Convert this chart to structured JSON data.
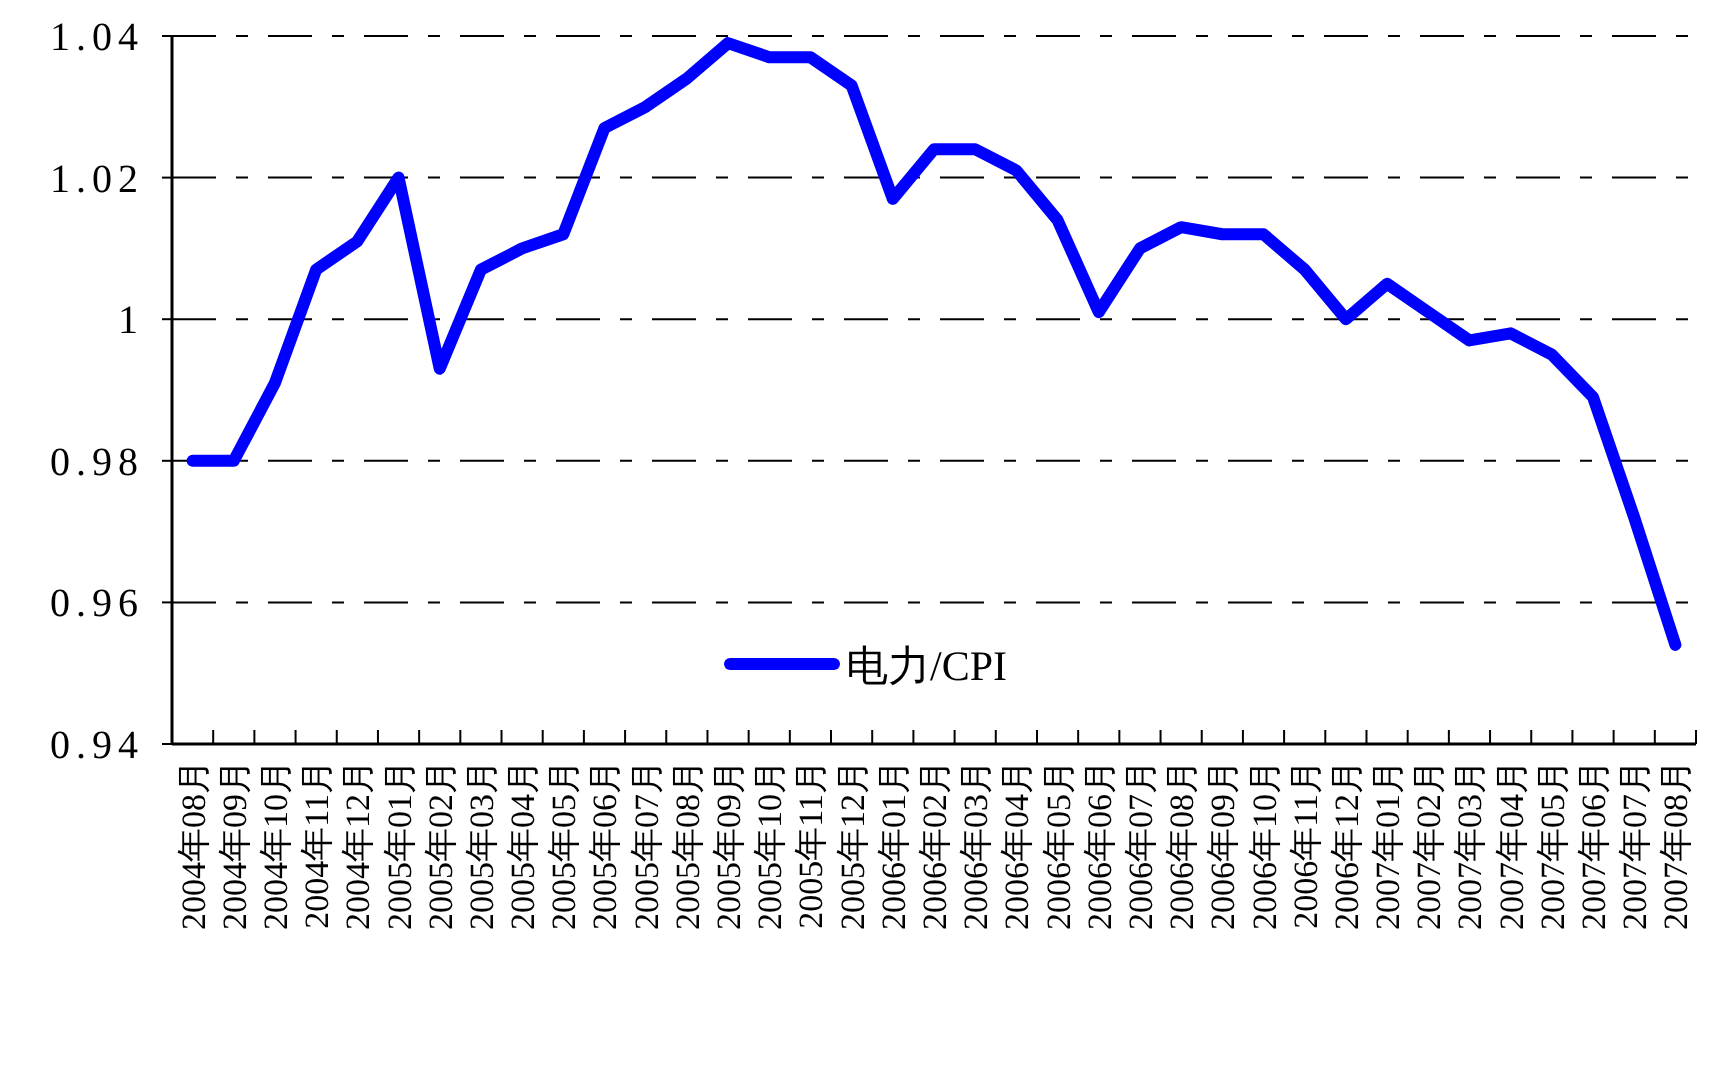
{
  "chart_data": {
    "type": "line",
    "categories": [
      "2004年08月",
      "2004年09月",
      "2004年10月",
      "2004年11月",
      "2004年12月",
      "2005年01月",
      "2005年02月",
      "2005年03月",
      "2005年04月",
      "2005年05月",
      "2005年06月",
      "2005年07月",
      "2005年08月",
      "2005年09月",
      "2005年10月",
      "2005年11月",
      "2005年12月",
      "2006年01月",
      "2006年02月",
      "2006年03月",
      "2006年04月",
      "2006年05月",
      "2006年06月",
      "2006年07月",
      "2006年08月",
      "2006年09月",
      "2006年10月",
      "2006年11月",
      "2006年12月",
      "2007年01月",
      "2007年02月",
      "2007年03月",
      "2007年04月",
      "2007年05月",
      "2007年06月",
      "2007年07月",
      "2007年08月"
    ],
    "series": [
      {
        "name": "电力/CPI",
        "color": "#0000ff",
        "values": [
          0.98,
          0.98,
          0.991,
          1.007,
          1.011,
          1.02,
          0.993,
          1.007,
          1.01,
          1.012,
          1.027,
          1.03,
          1.034,
          1.039,
          1.037,
          1.037,
          1.033,
          1.017,
          1.024,
          1.024,
          1.021,
          1.014,
          1.001,
          1.01,
          1.013,
          1.012,
          1.012,
          1.007,
          1.0,
          1.005,
          1.001,
          0.997,
          0.998,
          0.995,
          0.989,
          0.972,
          0.954
        ]
      }
    ],
    "ylim": [
      0.94,
      1.04
    ],
    "yticks": [
      0.94,
      0.96,
      0.98,
      1,
      1.02,
      1.04
    ],
    "grid": "y",
    "legend": "bottom",
    "marker": "none",
    "line_style": "solid"
  }
}
